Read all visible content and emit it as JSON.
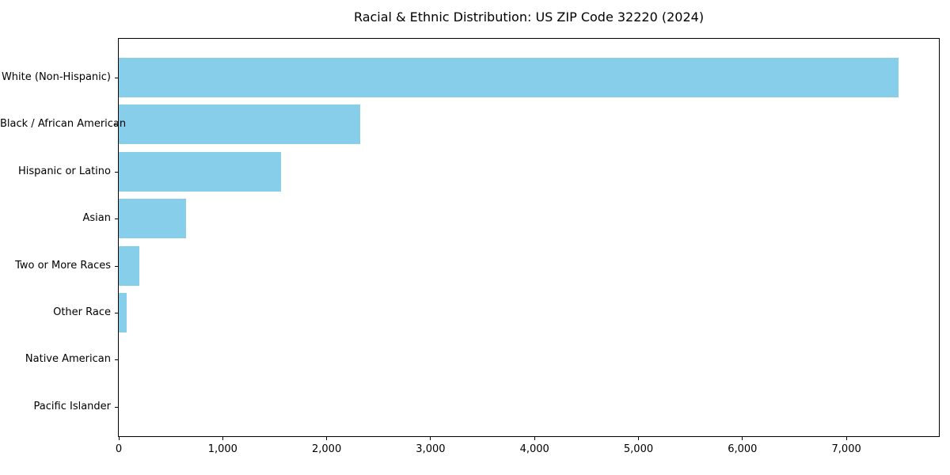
{
  "chart_data": {
    "type": "bar",
    "orientation": "horizontal",
    "title": "Racial & Ethnic Distribution: US ZIP Code 32220 (2024)",
    "categories": [
      "White (Non-Hispanic)",
      "Black / African American",
      "Hispanic or Latino",
      "Asian",
      "Two or More Races",
      "Other Race",
      "Native American",
      "Pacific Islander"
    ],
    "values": [
      7500,
      2325,
      1565,
      650,
      200,
      75,
      0,
      0
    ],
    "xlabel": "",
    "ylabel": "",
    "xlim": [
      0,
      7890
    ],
    "xticks": [
      0,
      1000,
      2000,
      3000,
      4000,
      5000,
      6000,
      7000
    ],
    "xtick_labels": [
      "0",
      "1,000",
      "2,000",
      "3,000",
      "4,000",
      "5,000",
      "6,000",
      "7,000"
    ],
    "grid": false,
    "legend": null,
    "bar_color": "#87CEEB",
    "text_color": "#000000",
    "background_color": "#ffffff"
  }
}
